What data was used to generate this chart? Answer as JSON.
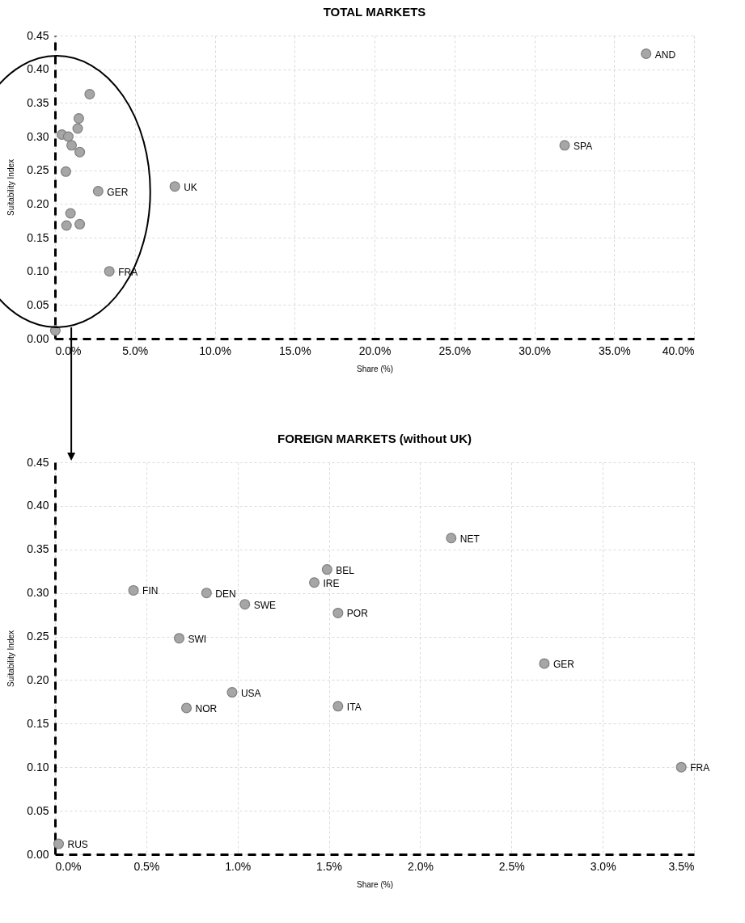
{
  "chart_data": [
    {
      "type": "scatter",
      "title": "TOTAL MARKETS",
      "xlabel": "Share (%)",
      "ylabel": "Suitability Index",
      "xlim": [
        0,
        40
      ],
      "ylim": [
        0,
        0.45
      ],
      "xticks": [
        {
          "value": 0,
          "label": "0.0%"
        },
        {
          "value": 5,
          "label": "5.0%"
        },
        {
          "value": 10,
          "label": "10.0%"
        },
        {
          "value": 15,
          "label": "15.0%"
        },
        {
          "value": 20,
          "label": "20.0%"
        },
        {
          "value": 25,
          "label": "25.0%"
        },
        {
          "value": 30,
          "label": "30.0%"
        },
        {
          "value": 35,
          "label": "35.0%"
        },
        {
          "value": 40,
          "label": "40.0%"
        }
      ],
      "yticks": [
        {
          "value": 0,
          "label": "0.00"
        },
        {
          "value": 0.05,
          "label": "0.05"
        },
        {
          "value": 0.1,
          "label": "0.10"
        },
        {
          "value": 0.15,
          "label": "0.15"
        },
        {
          "value": 0.2,
          "label": "0.20"
        },
        {
          "value": 0.25,
          "label": "0.25"
        },
        {
          "value": 0.3,
          "label": "0.30"
        },
        {
          "value": 0.35,
          "label": "0.35"
        },
        {
          "value": 0.4,
          "label": "0.40"
        },
        {
          "value": 0.45,
          "label": "0.45"
        }
      ],
      "grid": true,
      "marker": "circle",
      "series": [
        {
          "color": "#a6a6a6",
          "x": [
            37.0,
            31.9,
            7.5,
            2.7,
            3.4,
            0.02,
            0.43,
            0.83,
            1.04,
            0.68,
            0.72,
            0.97,
            1.42,
            1.49,
            1.55,
            1.55,
            2.17
          ],
          "values": [
            0.423,
            0.287,
            0.226,
            0.219,
            0.1,
            0.012,
            0.303,
            0.3,
            0.287,
            0.248,
            0.168,
            0.186,
            0.312,
            0.327,
            0.277,
            0.17,
            0.363
          ],
          "value_labels": [
            "AND",
            "SPA",
            "UK",
            "GER",
            "FRA",
            null,
            null,
            null,
            null,
            null,
            null,
            null,
            null,
            null,
            null,
            null,
            null
          ]
        }
      ]
    },
    {
      "type": "scatter",
      "title": "FOREIGN MARKETS (without UK)",
      "xlabel": "Share (%)",
      "ylabel": "Suitability Index",
      "xlim": [
        0,
        3.5
      ],
      "ylim": [
        0,
        0.45
      ],
      "xticks": [
        {
          "value": 0,
          "label": "0.0%"
        },
        {
          "value": 0.5,
          "label": "0.5%"
        },
        {
          "value": 1,
          "label": "1.0%"
        },
        {
          "value": 1.5,
          "label": "1.5%"
        },
        {
          "value": 2,
          "label": "2.0%"
        },
        {
          "value": 2.5,
          "label": "2.5%"
        },
        {
          "value": 3,
          "label": "3.0%"
        },
        {
          "value": 3.5,
          "label": "3.5%"
        }
      ],
      "yticks": [
        {
          "value": 0,
          "label": "0.00"
        },
        {
          "value": 0.05,
          "label": "0.05"
        },
        {
          "value": 0.1,
          "label": "0.10"
        },
        {
          "value": 0.15,
          "label": "0.15"
        },
        {
          "value": 0.2,
          "label": "0.20"
        },
        {
          "value": 0.25,
          "label": "0.25"
        },
        {
          "value": 0.3,
          "label": "0.30"
        },
        {
          "value": 0.35,
          "label": "0.35"
        },
        {
          "value": 0.4,
          "label": "0.40"
        },
        {
          "value": 0.45,
          "label": "0.45"
        }
      ],
      "grid": true,
      "marker": "circle",
      "series": [
        {
          "color": "#a6a6a6",
          "x": [
            0.02,
            0.43,
            0.83,
            1.04,
            0.68,
            0.72,
            0.97,
            1.42,
            1.49,
            1.55,
            1.55,
            2.17,
            2.68,
            3.43
          ],
          "values": [
            0.012,
            0.303,
            0.3,
            0.287,
            0.248,
            0.168,
            0.186,
            0.312,
            0.327,
            0.277,
            0.17,
            0.363,
            0.219,
            0.1
          ],
          "value_labels": [
            "RUS",
            "FIN",
            "DEN",
            "SWE",
            "SWI",
            "NOR",
            "USA",
            "IRE",
            "BEL",
            "POR",
            "ITA",
            "NET",
            "GER",
            "FRA"
          ]
        }
      ]
    }
  ]
}
